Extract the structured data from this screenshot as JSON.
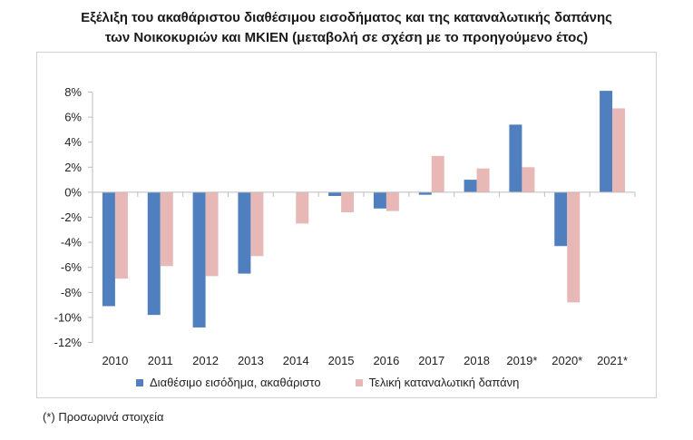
{
  "chart_data": {
    "type": "bar",
    "title_line1": "Εξέλιξη του ακαθάριστου διαθέσιμου εισοδήματος και της καταναλωτικής δαπάνης",
    "title_line2": "των Νοικοκυριών και ΜΚΙΕΝ (μεταβολή σε σχέση με το προηγούμενο έτος)",
    "categories": [
      "2010",
      "2011",
      "2012",
      "2013",
      "2014",
      "2015",
      "2016",
      "2017",
      "2018",
      "2019*",
      "2020*",
      "2021*"
    ],
    "series": [
      {
        "name": "Διαθέσιμο εισόδημα, ακαθάριστο",
        "color": "#4f7fbe",
        "values": [
          -9.1,
          -9.8,
          -10.8,
          -6.5,
          0.0,
          -0.3,
          -1.3,
          -0.2,
          1.0,
          5.4,
          -4.3,
          8.1
        ]
      },
      {
        "name": "Τελική καταναλωτική δαπάνη",
        "color": "#e8b8b7",
        "values": [
          -6.9,
          -5.9,
          -6.7,
          -5.1,
          -2.5,
          -1.6,
          -1.5,
          2.9,
          1.9,
          2.0,
          -8.8,
          6.7
        ]
      }
    ],
    "yticks": [
      8,
      6,
      4,
      2,
      0,
      -2,
      -4,
      -6,
      -8,
      -10,
      -12
    ],
    "ytick_labels": [
      "8%",
      "6%",
      "4%",
      "2%",
      "0%",
      "-2%",
      "-4%",
      "-6%",
      "-8%",
      "-10%",
      "-12%"
    ],
    "ylim": [
      -12,
      8
    ],
    "xlabel": "",
    "ylabel": "",
    "grid": false,
    "legend_position": "bottom"
  },
  "footnote": "(*) Προσωρινά στοιχεία"
}
